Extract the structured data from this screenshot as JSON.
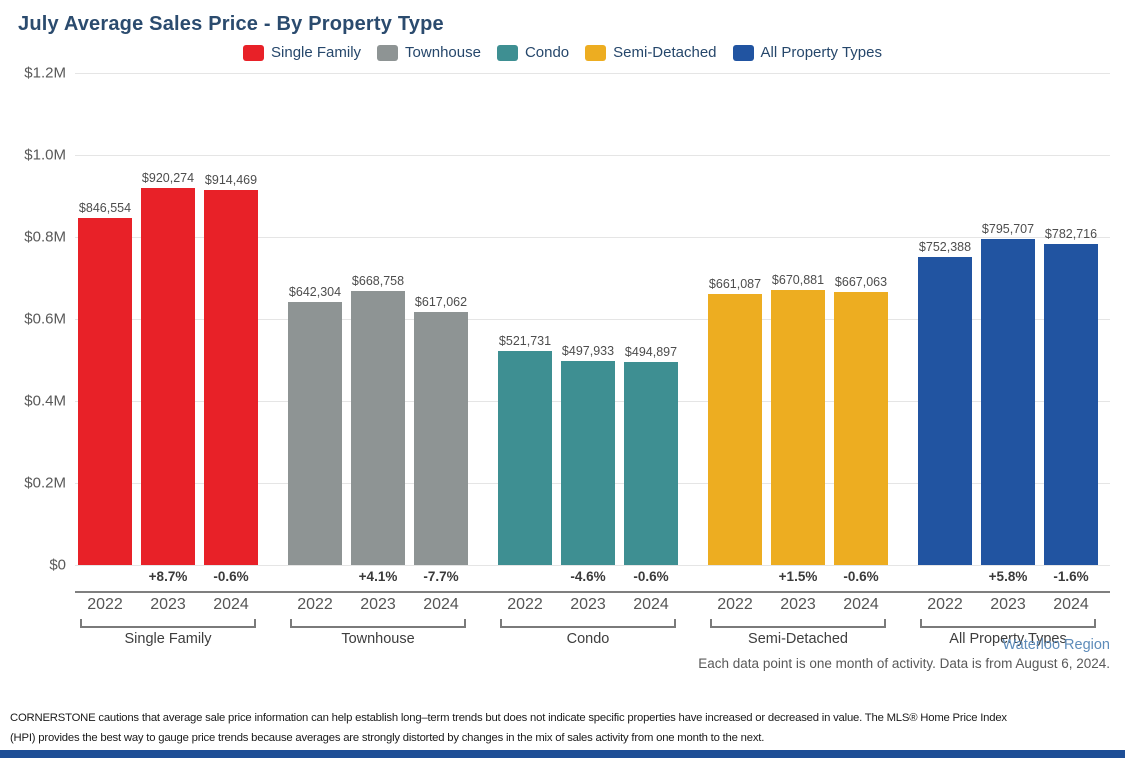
{
  "title": "July Average Sales Price - By Property Type",
  "colors": {
    "single_family": "#E82128",
    "townhouse": "#8E9494",
    "condo": "#3E8F92",
    "semi_detached": "#EDAD21",
    "all_property_types": "#2154A1",
    "title_text": "#2B4B6E",
    "region_text": "#5E8CBA",
    "bottom_strip": "#1E4E96"
  },
  "chart_data": {
    "type": "bar",
    "title": "July Average Sales Price - By Property Type",
    "xlabel": "",
    "ylabel": "",
    "ylim": [
      0,
      1200000
    ],
    "grid": true,
    "legend_position": "top",
    "ytick_labels_top_to_bottom": [
      "$1.2M",
      "$1.0M",
      "$0.8M",
      "$0.6M",
      "$0.4M",
      "$0.2M",
      "$0"
    ],
    "years": [
      "2022",
      "2023",
      "2024"
    ],
    "legend": [
      {
        "label": "Single Family",
        "color": "#E82128"
      },
      {
        "label": "Townhouse",
        "color": "#8E9494"
      },
      {
        "label": "Condo",
        "color": "#3E8F92"
      },
      {
        "label": "Semi-Detached",
        "color": "#EDAD21"
      },
      {
        "label": "All Property Types",
        "color": "#2154A1"
      }
    ],
    "groups": [
      {
        "label": "Single Family",
        "color": "#E82128",
        "values": [
          846554,
          920274,
          914469
        ],
        "value_labels": [
          "$846,554",
          "$920,274",
          "$914,469"
        ],
        "pct_change": [
          null,
          "+8.7%",
          "-0.6%"
        ]
      },
      {
        "label": "Townhouse",
        "color": "#8E9494",
        "values": [
          642304,
          668758,
          617062
        ],
        "value_labels": [
          "$642,304",
          "$668,758",
          "$617,062"
        ],
        "pct_change": [
          null,
          "+4.1%",
          "-7.7%"
        ]
      },
      {
        "label": "Condo",
        "color": "#3E8F92",
        "values": [
          521731,
          497933,
          494897
        ],
        "value_labels": [
          "$521,731",
          "$497,933",
          "$494,897"
        ],
        "pct_change": [
          null,
          "-4.6%",
          "-0.6%"
        ]
      },
      {
        "label": "Semi-Detached",
        "color": "#EDAD21",
        "values": [
          661087,
          670881,
          667063
        ],
        "value_labels": [
          "$661,087",
          "$670,881",
          "$667,063"
        ],
        "pct_change": [
          null,
          "+1.5%",
          "-0.6%"
        ]
      },
      {
        "label": "All Property Types",
        "color": "#2154A1",
        "values": [
          752388,
          795707,
          782716
        ],
        "value_labels": [
          "$752,388",
          "$795,707",
          "$782,716"
        ],
        "pct_change": [
          null,
          "+5.8%",
          "-1.6%"
        ]
      }
    ]
  },
  "footer": {
    "region": "Waterloo Region",
    "note": "Each data point is one month of activity. Data is from August 6, 2024.",
    "disclaimer_line1": "CORNERSTONE cautions that average sale price information can help establish long–term trends but does not indicate specific properties have increased or decreased in value. The MLS® Home Price Index",
    "disclaimer_line2": "(HPI) provides the best way to gauge price trends because averages are strongly distorted by changes in the mix of sales activity from one month to the next."
  }
}
